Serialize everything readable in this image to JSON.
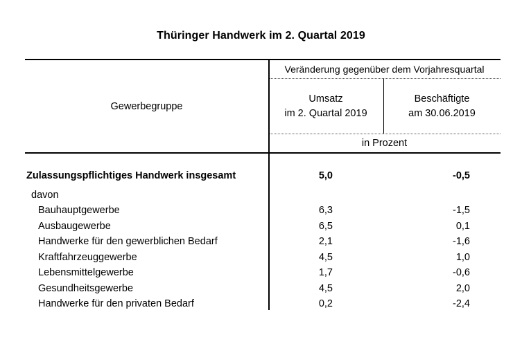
{
  "title": "Thüringer Handwerk im 2. Quartal 2019",
  "table": {
    "group_column_header": "Gewerbegruppe",
    "span_header": "Veränderung gegenüber dem Vorjahresquartal",
    "umsatz_header_line1": "Umsatz",
    "umsatz_header_line2": "im 2. Quartal 2019",
    "beschaeftigte_header_line1": "Beschäftigte",
    "beschaeftigte_header_line2": "am 30.06.2019",
    "unit_header": "in Prozent",
    "rows": [
      {
        "label": "Zulassungspflichtiges Handwerk insgesamt",
        "umsatz": "5,0",
        "beschaeftigte": "-0,5"
      },
      {
        "label": "davon",
        "umsatz": "",
        "beschaeftigte": ""
      },
      {
        "label": "Bauhauptgewerbe",
        "umsatz": "6,3",
        "beschaeftigte": "-1,5"
      },
      {
        "label": "Ausbaugewerbe",
        "umsatz": "6,5",
        "beschaeftigte": "0,1"
      },
      {
        "label": "Handwerke für den gewerblichen Bedarf",
        "umsatz": "2,1",
        "beschaeftigte": "-1,6"
      },
      {
        "label": "Kraftfahrzeuggewerbe",
        "umsatz": "4,5",
        "beschaeftigte": "1,0"
      },
      {
        "label": "Lebensmittelgewerbe",
        "umsatz": "1,7",
        "beschaeftigte": "-0,6"
      },
      {
        "label": "Gesundheitsgewerbe",
        "umsatz": "4,5",
        "beschaeftigte": "2,0"
      },
      {
        "label": "Handwerke für den privaten Bedarf",
        "umsatz": "0,2",
        "beschaeftigte": "-2,4"
      }
    ]
  }
}
